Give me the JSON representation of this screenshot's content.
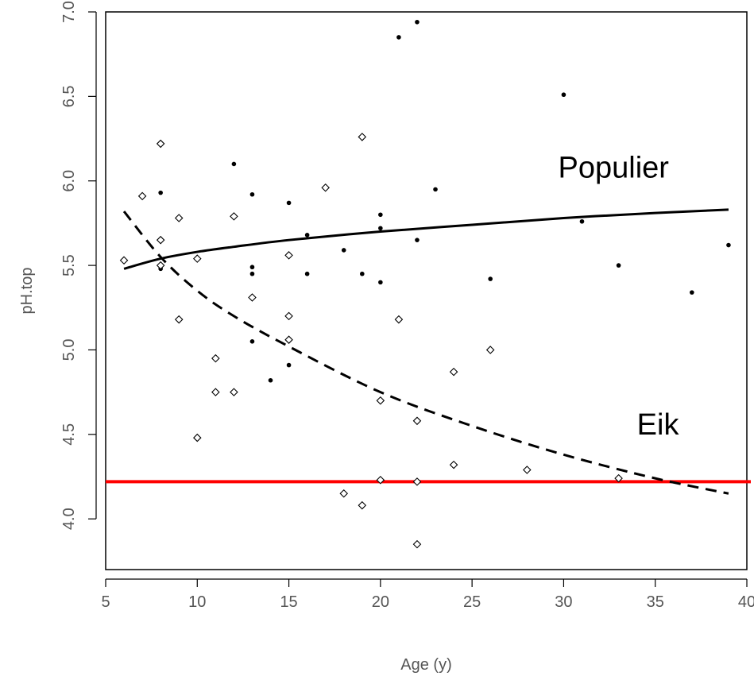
{
  "chart_data": {
    "type": "scatter",
    "title": "",
    "xlabel": "Age (y)",
    "ylabel": "pH.top",
    "xlim": [
      5,
      40
    ],
    "ylim": [
      3.7,
      7.0
    ],
    "xticks": [
      5,
      10,
      15,
      20,
      25,
      30,
      35,
      40
    ],
    "yticks": [
      4.0,
      4.5,
      5.0,
      5.5,
      6.0,
      6.5,
      7.0
    ],
    "grid": false,
    "series": [
      {
        "name": "Populier",
        "marker": "filled-dot",
        "points": [
          [
            8,
            5.93
          ],
          [
            8,
            5.48
          ],
          [
            12,
            6.1
          ],
          [
            13,
            5.92
          ],
          [
            13,
            5.49
          ],
          [
            13,
            5.45
          ],
          [
            13,
            5.05
          ],
          [
            14,
            4.82
          ],
          [
            15,
            5.87
          ],
          [
            15,
            4.91
          ],
          [
            16,
            5.68
          ],
          [
            16,
            5.45
          ],
          [
            18,
            5.59
          ],
          [
            19,
            5.45
          ],
          [
            20,
            5.8
          ],
          [
            20,
            5.72
          ],
          [
            20,
            5.4
          ],
          [
            21,
            6.85
          ],
          [
            22,
            6.94
          ],
          [
            22,
            5.65
          ],
          [
            23,
            5.95
          ],
          [
            26,
            5.42
          ],
          [
            30,
            6.51
          ],
          [
            31,
            5.76
          ],
          [
            33,
            5.5
          ],
          [
            37,
            5.34
          ],
          [
            39,
            5.62
          ]
        ]
      },
      {
        "name": "Eik",
        "marker": "open-diamond",
        "points": [
          [
            6,
            5.53
          ],
          [
            7,
            5.91
          ],
          [
            8,
            6.22
          ],
          [
            8,
            5.65
          ],
          [
            8,
            5.5
          ],
          [
            9,
            5.78
          ],
          [
            9,
            5.18
          ],
          [
            10,
            5.54
          ],
          [
            10,
            4.48
          ],
          [
            11,
            4.95
          ],
          [
            11,
            4.75
          ],
          [
            12,
            5.79
          ],
          [
            12,
            4.75
          ],
          [
            13,
            5.31
          ],
          [
            15,
            5.56
          ],
          [
            15,
            5.2
          ],
          [
            15,
            5.06
          ],
          [
            17,
            5.96
          ],
          [
            18,
            4.15
          ],
          [
            19,
            6.26
          ],
          [
            19,
            4.08
          ],
          [
            20,
            4.7
          ],
          [
            20,
            4.23
          ],
          [
            21,
            5.18
          ],
          [
            22,
            4.58
          ],
          [
            22,
            4.22
          ],
          [
            22,
            3.85
          ],
          [
            24,
            4.87
          ],
          [
            24,
            4.32
          ],
          [
            26,
            5.0
          ],
          [
            28,
            4.29
          ],
          [
            33,
            4.24
          ]
        ]
      }
    ],
    "fit_lines": [
      {
        "series": "Populier",
        "style": "solid",
        "points": [
          [
            6,
            5.48
          ],
          [
            8,
            5.54
          ],
          [
            10,
            5.58
          ],
          [
            12,
            5.61
          ],
          [
            15,
            5.65
          ],
          [
            20,
            5.7
          ],
          [
            25,
            5.74
          ],
          [
            30,
            5.78
          ],
          [
            35,
            5.81
          ],
          [
            39,
            5.83
          ]
        ]
      },
      {
        "series": "Eik",
        "style": "dashed",
        "points": [
          [
            6,
            5.82
          ],
          [
            8,
            5.55
          ],
          [
            10,
            5.35
          ],
          [
            12,
            5.2
          ],
          [
            15,
            5.02
          ],
          [
            20,
            4.75
          ],
          [
            25,
            4.55
          ],
          [
            30,
            4.38
          ],
          [
            35,
            4.24
          ],
          [
            39,
            4.15
          ]
        ]
      }
    ],
    "reference_line": {
      "y": 4.22,
      "color": "#ff0000"
    },
    "annotations": [
      {
        "text": "Populier",
        "x": 29.7,
        "y": 6.02
      },
      {
        "text": "Eik",
        "x": 34.0,
        "y": 4.5
      }
    ]
  }
}
